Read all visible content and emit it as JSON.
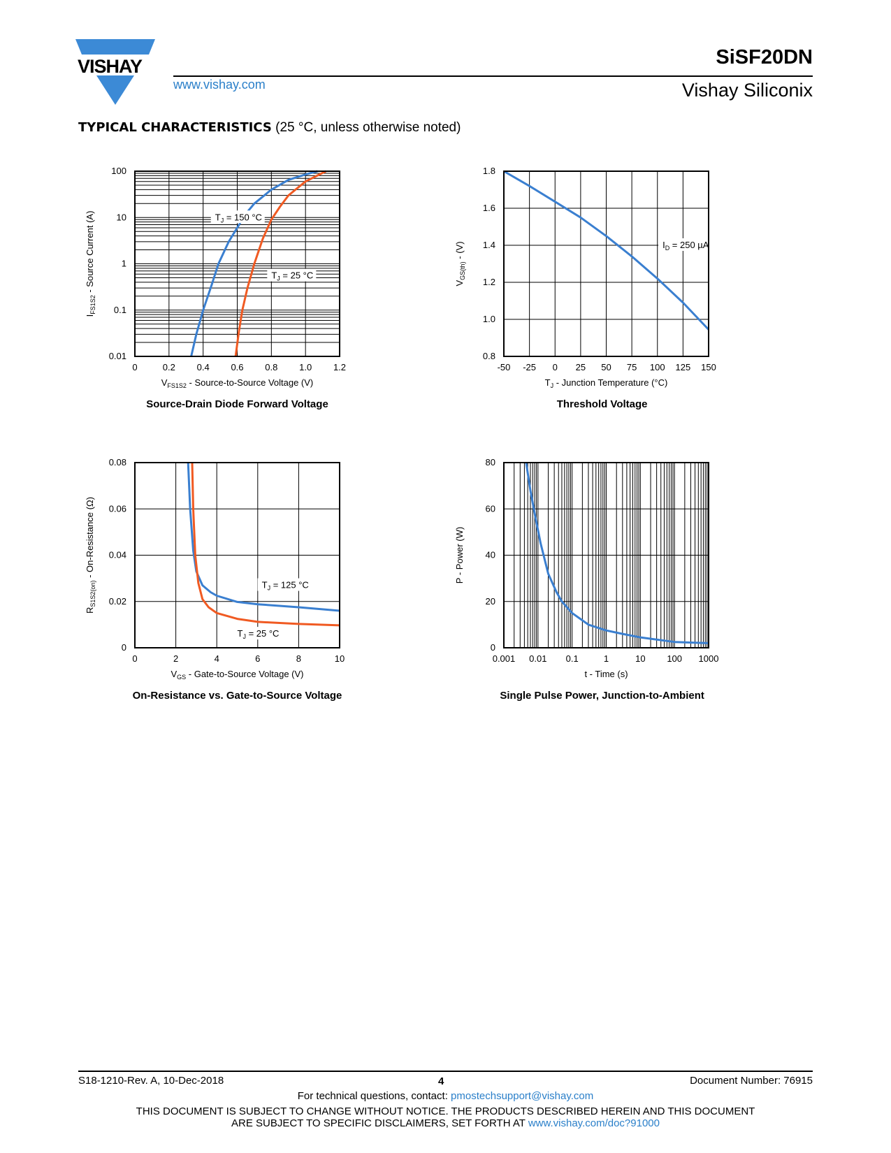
{
  "header": {
    "brand": "VISHAY",
    "website": "www.vishay.com",
    "part_number": "SiSF20DN",
    "company": "Vishay Siliconix"
  },
  "section": {
    "title": "TYPICAL CHARACTERISTICS",
    "note": " (25 °C, unless otherwise noted)"
  },
  "colors": {
    "blue": "#3a7fd0",
    "orange": "#f05a22",
    "brand_blue": "#3c8ad6"
  },
  "chart_data": [
    {
      "type": "line",
      "title": "Source-Drain Diode Forward Voltage",
      "xlabel": {
        "main": "V",
        "sub": "FS1S2",
        "rest": " - Source-to-Source Voltage (V)"
      },
      "ylabel": {
        "main": "I",
        "sub": "FS1S2",
        "rest": " - Source Current (A)"
      },
      "xlim": [
        0,
        1.2
      ],
      "ylim": [
        0.01,
        100
      ],
      "yscale": "log",
      "grid": true,
      "xticks": [
        "0",
        "0.2",
        "0.4",
        "0.6",
        "0.8",
        "1.0",
        "1.2"
      ],
      "yticks": [
        "0.01",
        "0.1",
        "1",
        "10",
        "100"
      ],
      "series": [
        {
          "name": {
            "main": "T",
            "sub": "J",
            "rest": " = 150 °C"
          },
          "color": "#3a7fd0",
          "x": [
            0.33,
            0.36,
            0.4,
            0.45,
            0.49,
            0.55,
            0.6,
            0.65,
            0.7,
            0.8,
            0.9,
            1.0,
            1.07
          ],
          "y": [
            0.01,
            0.03,
            0.1,
            0.35,
            1,
            3,
            6,
            12,
            20,
            40,
            65,
            85,
            100
          ]
        },
        {
          "name": {
            "main": "T",
            "sub": "J",
            "rest": " = 25 °C"
          },
          "color": "#f05a22",
          "x": [
            0.59,
            0.61,
            0.63,
            0.66,
            0.7,
            0.75,
            0.8,
            0.85,
            0.9,
            1.0,
            1.12
          ],
          "y": [
            0.01,
            0.035,
            0.1,
            0.3,
            1,
            3.5,
            9,
            17,
            30,
            60,
            100
          ]
        }
      ]
    },
    {
      "type": "line",
      "title": "Threshold Voltage",
      "xlabel": {
        "main": "T",
        "sub": "J",
        "rest": " - Junction Temperature (°C)"
      },
      "ylabel": {
        "main": "V",
        "sub": "GS(th)",
        "rest": " - (V)"
      },
      "xlim": [
        -50,
        150
      ],
      "ylim": [
        0.8,
        1.8
      ],
      "grid": true,
      "xticks": [
        "-50",
        "-25",
        "0",
        "25",
        "50",
        "75",
        "100",
        "125",
        "150"
      ],
      "yticks": [
        "0.8",
        "1.0",
        "1.2",
        "1.4",
        "1.6",
        "1.8"
      ],
      "series": [
        {
          "name": {
            "main": "I",
            "sub": "D",
            "rest": " = 250 µA"
          },
          "color": "#3a7fd0",
          "x": [
            -50,
            -25,
            0,
            25,
            50,
            75,
            100,
            125,
            150
          ],
          "y": [
            1.8,
            1.72,
            1.635,
            1.55,
            1.45,
            1.34,
            1.22,
            1.09,
            0.945
          ]
        }
      ]
    },
    {
      "type": "line",
      "title": "On-Resistance vs. Gate-to-Source Voltage",
      "xlabel": {
        "main": "V",
        "sub": "GS",
        "rest": " - Gate-to-Source Voltage (V)"
      },
      "ylabel": {
        "main": "R",
        "sub": "S1S2(on)",
        "rest": " - On-Resistance (Ω)"
      },
      "xlim": [
        0,
        10
      ],
      "ylim": [
        0,
        0.08
      ],
      "grid": true,
      "xticks": [
        "0",
        "2",
        "4",
        "6",
        "8",
        "10"
      ],
      "yticks": [
        "0",
        "0.02",
        "0.04",
        "0.06",
        "0.08"
      ],
      "series": [
        {
          "name": {
            "main": "T",
            "sub": "J",
            "rest": " = 125 °C"
          },
          "color": "#3a7fd0",
          "x": [
            2.6,
            2.7,
            2.85,
            3.0,
            3.3,
            3.7,
            4,
            5,
            6,
            8,
            10
          ],
          "y": [
            0.08,
            0.06,
            0.042,
            0.033,
            0.027,
            0.024,
            0.0225,
            0.0198,
            0.0188,
            0.0175,
            0.016
          ]
        },
        {
          "name": {
            "main": "T",
            "sub": "J",
            "rest": " = 25 °C"
          },
          "color": "#f05a22",
          "x": [
            2.8,
            2.85,
            2.95,
            3.1,
            3.3,
            3.6,
            4,
            5,
            6,
            8,
            10
          ],
          "y": [
            0.08,
            0.06,
            0.04,
            0.028,
            0.021,
            0.0175,
            0.015,
            0.0125,
            0.0112,
            0.0103,
            0.0097
          ]
        }
      ]
    },
    {
      "type": "line",
      "title": "Single Pulse Power, Junction-to-Ambient",
      "xlabel": {
        "main": "t - Time (s)",
        "sub": "",
        "rest": ""
      },
      "ylabel": {
        "main": "P - Power (W)",
        "sub": "",
        "rest": ""
      },
      "xlim": [
        0.001,
        1000
      ],
      "xscale": "log",
      "ylim": [
        0,
        80
      ],
      "grid": true,
      "xticks": [
        "0.001",
        "0.01",
        "0.1",
        "1",
        "10",
        "100",
        "1000"
      ],
      "yticks": [
        "0",
        "20",
        "40",
        "60",
        "80"
      ],
      "series": [
        {
          "color": "#3a7fd0",
          "x": [
            0.0045,
            0.006,
            0.008,
            0.012,
            0.02,
            0.035,
            0.05,
            0.1,
            0.3,
            1,
            3,
            10,
            100,
            1000
          ],
          "y": [
            80,
            68,
            58,
            45,
            32,
            24,
            20,
            15,
            10,
            7.5,
            6,
            4.5,
            2.5,
            2
          ]
        }
      ]
    }
  ],
  "footer": {
    "revision": "S18-1210-Rev. A, 10-Dec-2018",
    "page": "4",
    "doc_number": "Document Number: 76915",
    "contact_prefix": "For technical questions, contact: ",
    "contact_email": "pmostechsupport@vishay.com",
    "disclaimer_1": "THIS DOCUMENT IS SUBJECT TO CHANGE WITHOUT NOTICE. THE PRODUCTS DESCRIBED HEREIN AND THIS DOCUMENT",
    "disclaimer_2": "ARE SUBJECT TO SPECIFIC DISCLAIMERS, SET FORTH AT ",
    "disclaimer_link": "www.vishay.com/doc?91000"
  }
}
